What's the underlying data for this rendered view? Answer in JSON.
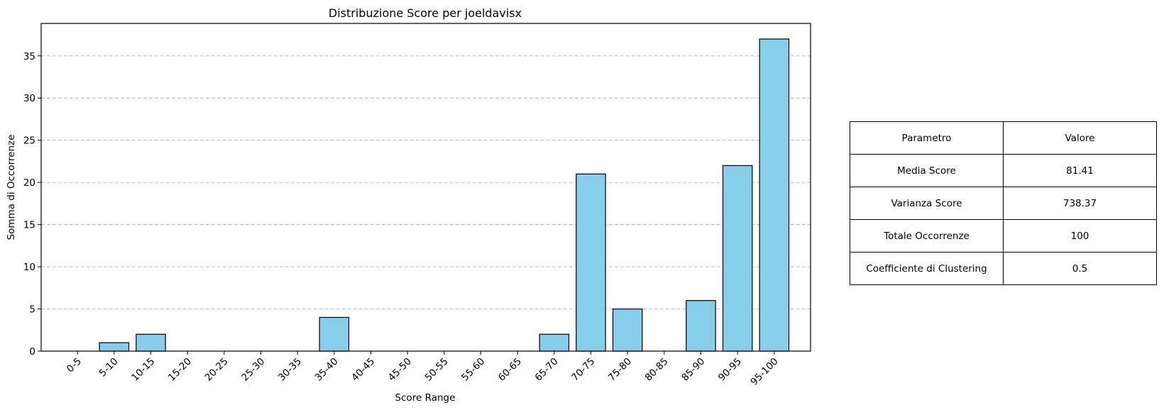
{
  "chart_data": {
    "type": "bar",
    "title": "Distribuzione Score per joeldavisx",
    "xlabel": "Score Range",
    "ylabel": "Somma di Occorrenze",
    "categories": [
      "0-5",
      "5-10",
      "10-15",
      "15-20",
      "20-25",
      "25-30",
      "30-35",
      "35-40",
      "40-45",
      "45-50",
      "50-55",
      "55-60",
      "60-65",
      "65-70",
      "70-75",
      "75-80",
      "80-85",
      "85-90",
      "90-95",
      "95-100"
    ],
    "values": [
      0,
      1,
      2,
      0,
      0,
      0,
      0,
      4,
      0,
      0,
      0,
      0,
      0,
      2,
      21,
      5,
      0,
      6,
      22,
      37
    ],
    "ylim": [
      0,
      38.85
    ],
    "yticks": [
      0,
      5,
      10,
      15,
      20,
      25,
      30,
      35
    ],
    "grid": "y-dashed",
    "bar_color": "#87ceeb",
    "edge_color": "#000000"
  },
  "table": {
    "header": [
      "Parametro",
      "Valore"
    ],
    "rows": [
      [
        "Media Score",
        "81.41"
      ],
      [
        "Varianza Score",
        "738.37"
      ],
      [
        "Totale Occorrenze",
        "100"
      ],
      [
        "Coefficiente di Clustering",
        "0.5"
      ]
    ]
  }
}
